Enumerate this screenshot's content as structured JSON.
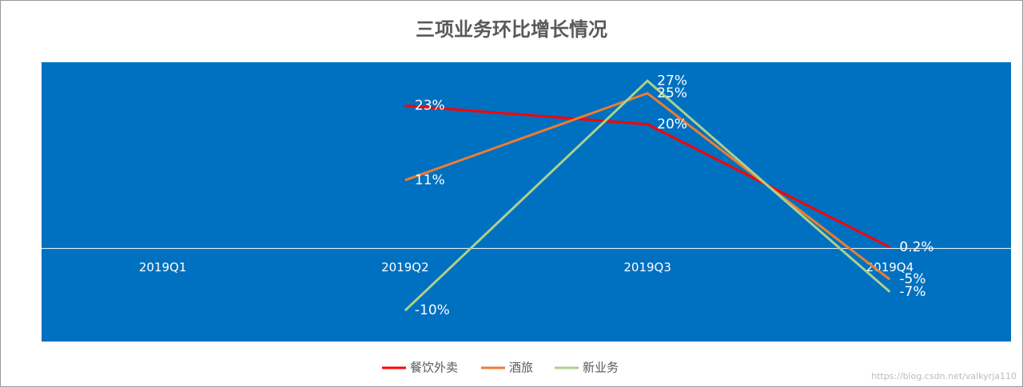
{
  "chart_data": {
    "type": "line",
    "title": "三项业务环比增长情况",
    "categories": [
      "2019Q1",
      "2019Q2",
      "2019Q3",
      "2019Q4"
    ],
    "series": [
      {
        "name": "餐饮外卖",
        "color": "#ff0000",
        "values": [
          null,
          23,
          20,
          0.2
        ],
        "value_labels": [
          null,
          "23%",
          "20%",
          "0.2%"
        ]
      },
      {
        "name": "酒旅",
        "color": "#ed7d31",
        "values": [
          null,
          11,
          25,
          -5
        ],
        "value_labels": [
          null,
          "11%",
          "25%",
          "-5%"
        ]
      },
      {
        "name": "新业务",
        "color": "#a9d18e",
        "values": [
          null,
          -10,
          27,
          -7
        ],
        "value_labels": [
          null,
          "-10%",
          "27%",
          "-7%"
        ]
      }
    ],
    "ylim": [
      -15,
      30
    ],
    "plot_background": "#0070c0",
    "legend": "bottom",
    "watermark": "https://blog.csdn.net/valkyrja110"
  }
}
